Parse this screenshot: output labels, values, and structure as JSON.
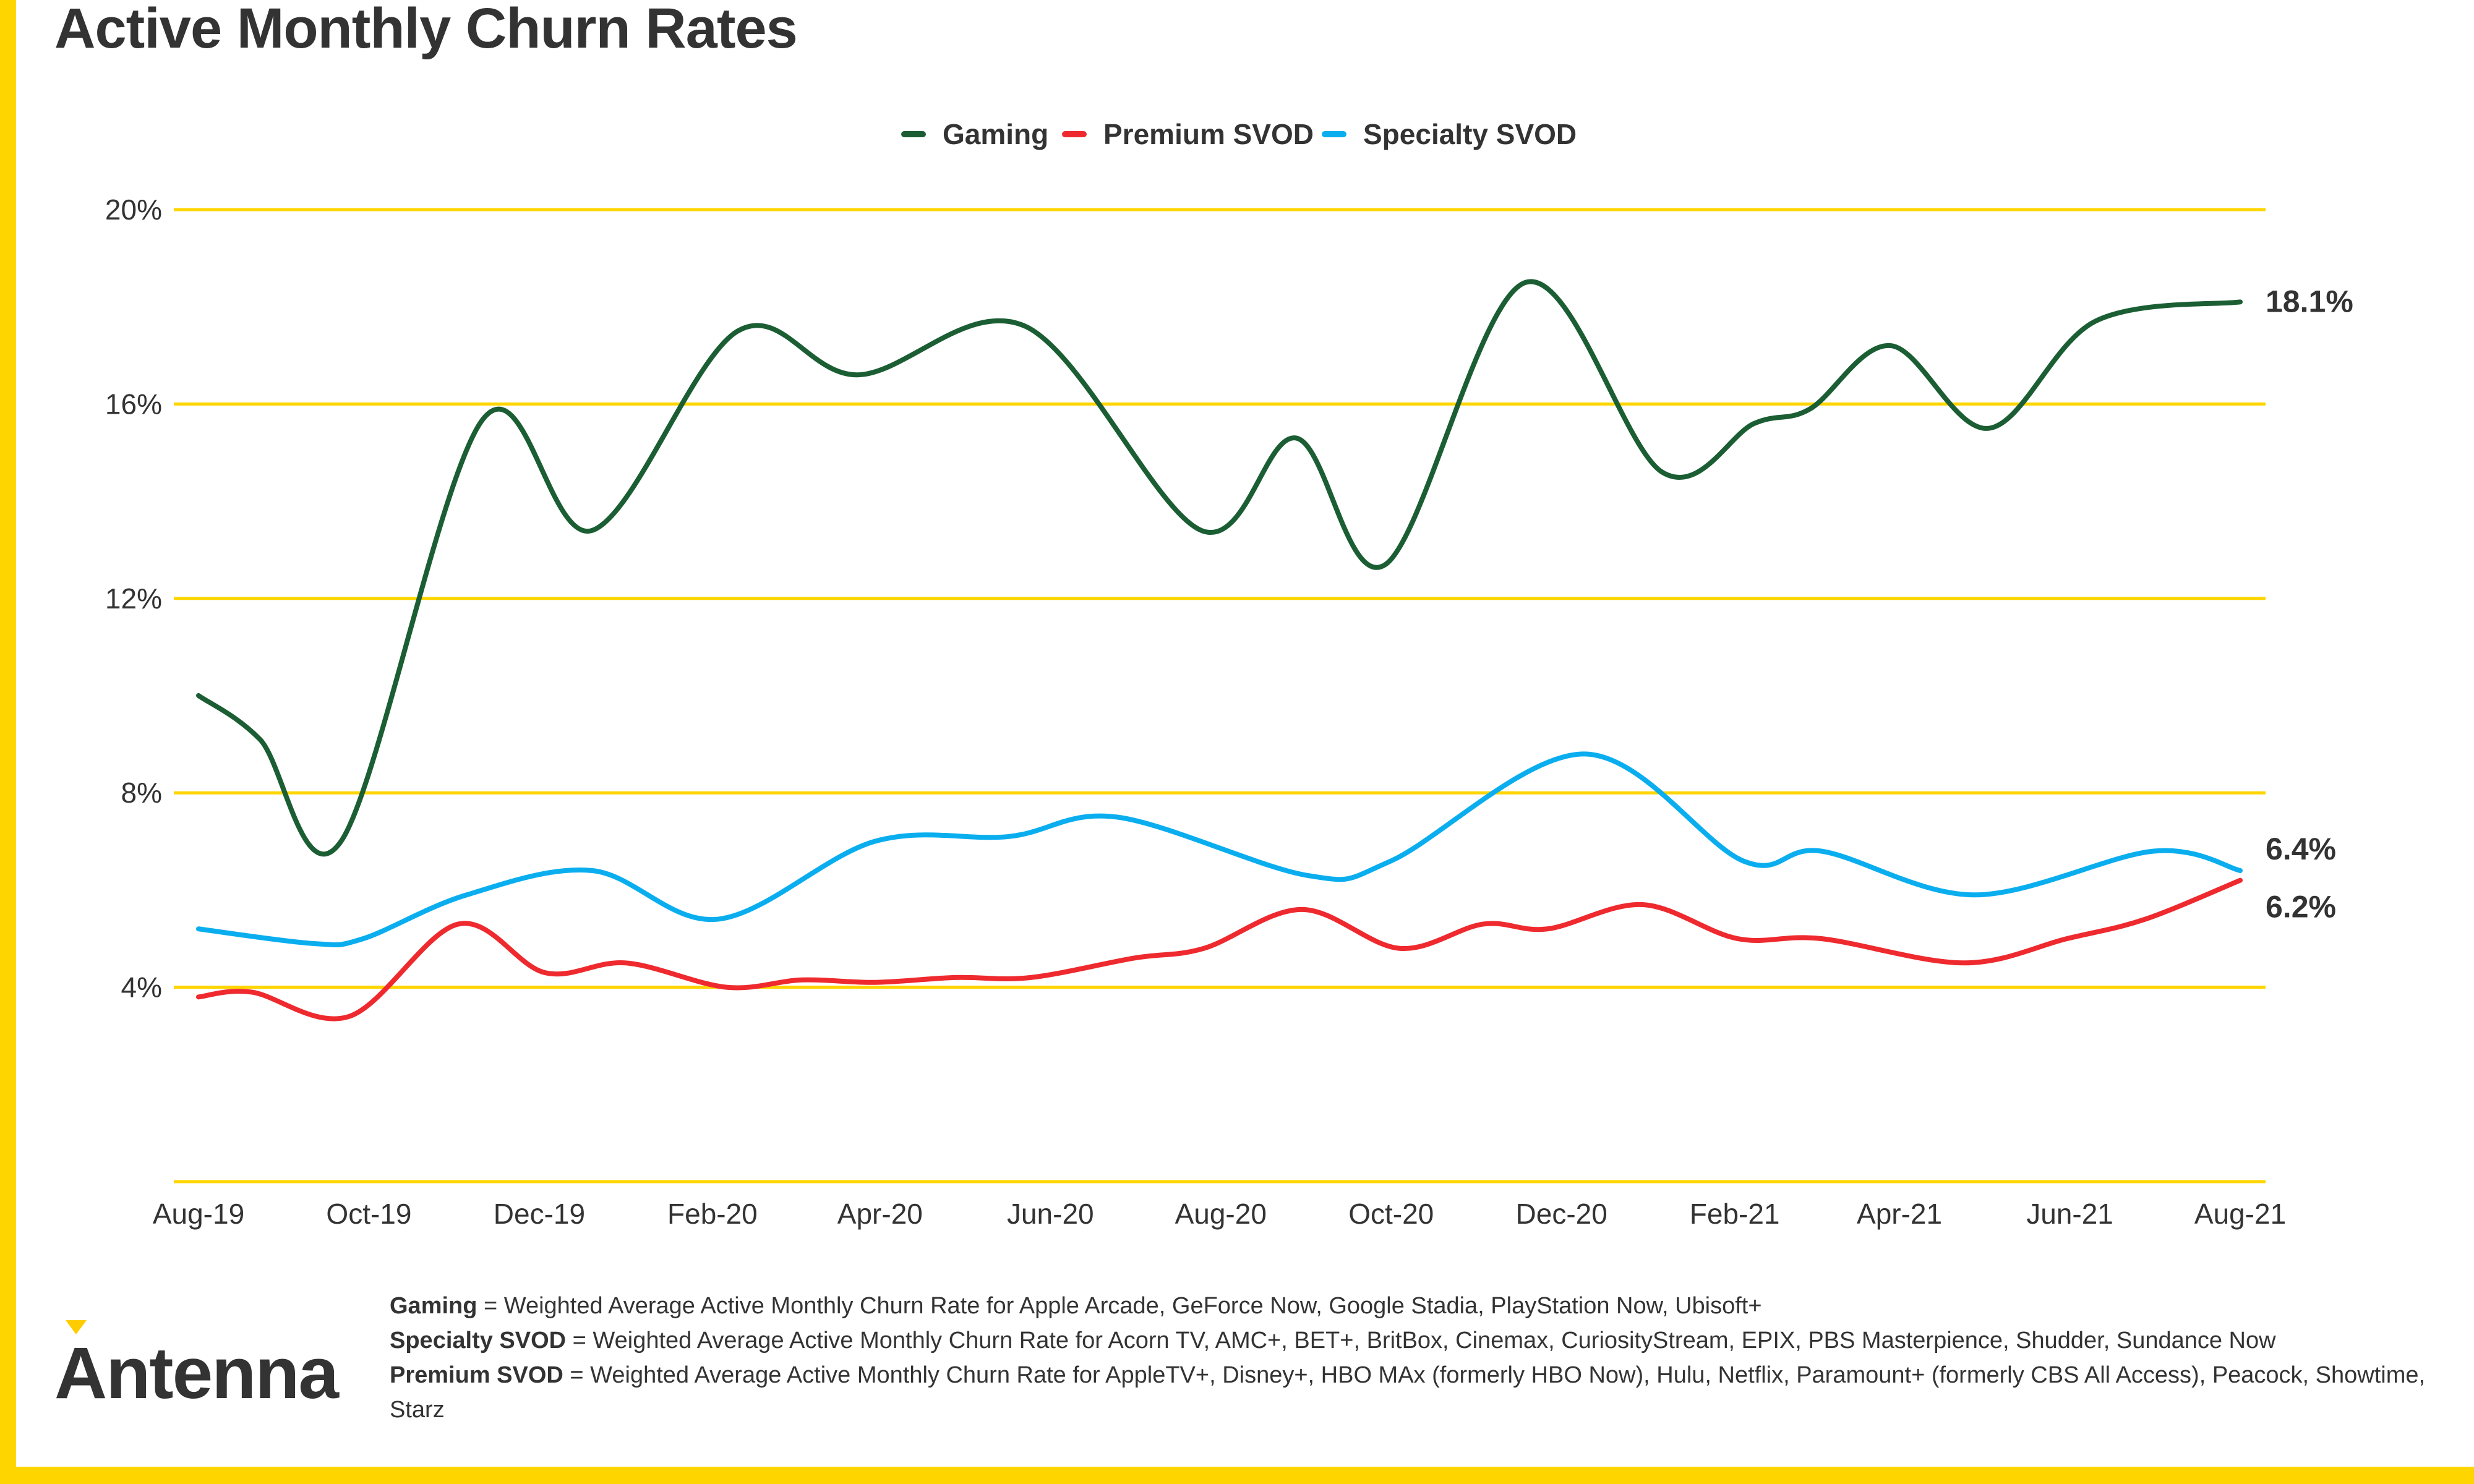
{
  "chart_data": {
    "type": "line",
    "title": "Active Monthly Churn Rates",
    "xlabel": "",
    "ylabel": "",
    "ylim": [
      0,
      20
    ],
    "yticks": [
      4,
      8,
      12,
      16,
      20
    ],
    "ytick_labels": [
      "4%",
      "8%",
      "12%",
      "16%",
      "20%"
    ],
    "xlim": [
      "2019-08-01",
      "2021-08-01"
    ],
    "xtick_dates": [
      "2019-08-01",
      "2019-10-01",
      "2019-12-01",
      "2020-02-01",
      "2020-04-01",
      "2020-06-01",
      "2020-08-01",
      "2020-10-01",
      "2020-12-01",
      "2021-02-01",
      "2021-04-01",
      "2021-06-01",
      "2021-08-01"
    ],
    "xtick_labels": [
      "Aug-19",
      "Oct-19",
      "Dec-19",
      "Feb-20",
      "Apr-20",
      "Jun-20",
      "Aug-20",
      "Oct-20",
      "Dec-20",
      "Feb-21",
      "Apr-21",
      "Jun-21",
      "Aug-21"
    ],
    "grid": "horizontal",
    "grid_color": "#FFD500",
    "legend_placement": "top-center",
    "series": [
      {
        "name": "Gaming",
        "color": "#1B5E34",
        "end_label": "18.1%",
        "points": [
          [
            "2019-08-01",
            10.0
          ],
          [
            "2019-08-23",
            9.1
          ],
          [
            "2019-09-21",
            7.0
          ],
          [
            "2019-11-11",
            15.7
          ],
          [
            "2019-12-20",
            13.4
          ],
          [
            "2020-02-10",
            17.5
          ],
          [
            "2020-03-24",
            16.6
          ],
          [
            "2020-05-23",
            17.6
          ],
          [
            "2020-07-25",
            13.4
          ],
          [
            "2020-08-28",
            15.3
          ],
          [
            "2020-09-29",
            12.7
          ],
          [
            "2020-11-18",
            18.5
          ],
          [
            "2021-01-06",
            14.6
          ],
          [
            "2021-02-08",
            15.6
          ],
          [
            "2021-02-28",
            15.9
          ],
          [
            "2021-03-29",
            17.2
          ],
          [
            "2021-05-03",
            15.5
          ],
          [
            "2021-06-10",
            17.7
          ],
          [
            "2021-08-01",
            18.1
          ]
        ]
      },
      {
        "name": "Premium SVOD",
        "color": "#EE2A2F",
        "end_label": "6.2%",
        "points": [
          [
            "2019-08-01",
            3.8
          ],
          [
            "2019-08-20",
            3.9
          ],
          [
            "2019-09-24",
            3.4
          ],
          [
            "2019-11-02",
            5.3
          ],
          [
            "2019-12-03",
            4.3
          ],
          [
            "2020-01-01",
            4.5
          ],
          [
            "2020-02-06",
            4.0
          ],
          [
            "2020-03-04",
            4.15
          ],
          [
            "2020-03-30",
            4.1
          ],
          [
            "2020-04-28",
            4.2
          ],
          [
            "2020-05-25",
            4.2
          ],
          [
            "2020-07-01",
            4.6
          ],
          [
            "2020-07-26",
            4.8
          ],
          [
            "2020-08-30",
            5.6
          ],
          [
            "2020-10-04",
            4.8
          ],
          [
            "2020-11-03",
            5.3
          ],
          [
            "2020-11-26",
            5.2
          ],
          [
            "2020-12-30",
            5.7
          ],
          [
            "2021-02-02",
            5.0
          ],
          [
            "2021-03-04",
            5.0
          ],
          [
            "2021-04-24",
            4.5
          ],
          [
            "2021-05-31",
            5.0
          ],
          [
            "2021-06-28",
            5.4
          ],
          [
            "2021-08-01",
            6.2
          ]
        ]
      },
      {
        "name": "Specialty SVOD",
        "color": "#0AAEEF",
        "end_label": "6.4%",
        "points": [
          [
            "2019-08-01",
            5.2
          ],
          [
            "2019-09-11",
            4.9
          ],
          [
            "2019-09-29",
            5.0
          ],
          [
            "2019-11-05",
            5.9
          ],
          [
            "2019-12-20",
            6.4
          ],
          [
            "2020-02-03",
            5.4
          ],
          [
            "2020-03-30",
            7.0
          ],
          [
            "2020-05-17",
            7.1
          ],
          [
            "2020-06-25",
            7.5
          ],
          [
            "2020-09-01",
            6.3
          ],
          [
            "2020-10-01",
            6.6
          ],
          [
            "2020-12-09",
            8.8
          ],
          [
            "2021-02-04",
            6.6
          ],
          [
            "2021-03-04",
            6.8
          ],
          [
            "2021-04-28",
            5.9
          ],
          [
            "2021-07-01",
            6.8
          ],
          [
            "2021-08-01",
            6.4
          ]
        ]
      }
    ]
  },
  "footnotes": [
    {
      "term": "Gaming",
      "text": " = Weighted Average Active Monthly Churn Rate for Apple Arcade, GeForce Now, Google Stadia, PlayStation Now, Ubisoft+"
    },
    {
      "term": "Specialty SVOD",
      "text": " = Weighted Average Active Monthly Churn Rate for Acorn TV, AMC+, BET+, BritBox, Cinemax, CuriosityStream, EPIX, PBS Masterpience, Shudder, Sundance Now"
    },
    {
      "term": "Premium SVOD",
      "text": " = Weighted Average Active Monthly Churn Rate for AppleTV+, Disney+, HBO MAx (formerly HBO Now), Hulu, Netflix, Paramount+ (formerly CBS All Access), Peacock, Showtime, Starz"
    }
  ],
  "logo": {
    "text": "Antenna",
    "accent": "#FFCC00"
  },
  "colors": {
    "border": "#FFD500",
    "text": "#333333"
  }
}
